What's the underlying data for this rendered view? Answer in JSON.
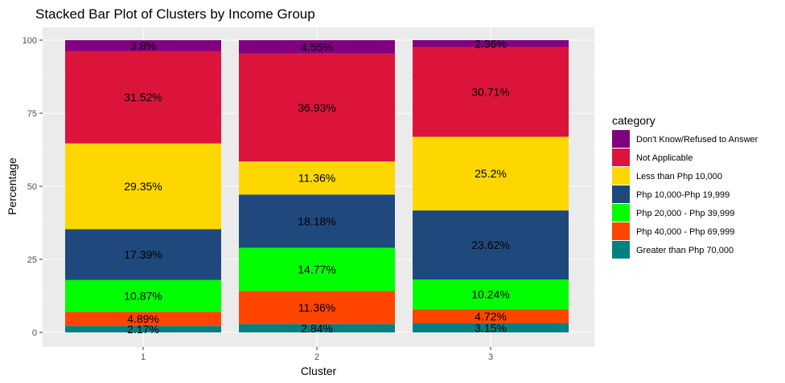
{
  "chart_data": {
    "type": "bar",
    "stacked": true,
    "title": "Stacked Bar Plot of Clusters by Income Group",
    "xlabel": "Cluster",
    "ylabel": "Percentage",
    "ylim": [
      0,
      100
    ],
    "yticks": [
      0,
      25,
      50,
      75,
      100
    ],
    "categories": [
      "1",
      "2",
      "3"
    ],
    "grid": true,
    "legend_title": "category",
    "legend_position": "right",
    "series": [
      {
        "name": "Greater than Php 70,000",
        "color": "#008080",
        "values": [
          2.17,
          2.84,
          3.15
        ],
        "labels": [
          "2.17%",
          "2.84%",
          "3.15%"
        ]
      },
      {
        "name": "Php 40,000 - Php 69,999",
        "color": "#FF4500",
        "values": [
          4.89,
          11.36,
          4.72
        ],
        "labels": [
          "4.89%",
          "11.36%",
          "4.72%"
        ]
      },
      {
        "name": "Php 20,000 - Php 39,999",
        "color": "#00FF00",
        "values": [
          10.87,
          14.77,
          10.24
        ],
        "labels": [
          "10.87%",
          "14.77%",
          "10.24%"
        ]
      },
      {
        "name": "Php 10,000-Php 19,999",
        "color": "#1F497D",
        "values": [
          17.39,
          18.18,
          23.62
        ],
        "labels": [
          "17.39%",
          "18.18%",
          "23.62%"
        ]
      },
      {
        "name": "Less than Php 10,000",
        "color": "#FFD700",
        "values": [
          29.35,
          11.36,
          25.2
        ],
        "labels": [
          "29.35%",
          "11.36%",
          "25.2%"
        ]
      },
      {
        "name": "Not Applicable",
        "color": "#DC143C",
        "values": [
          31.52,
          36.93,
          30.71
        ],
        "labels": [
          "31.52%",
          "36.93%",
          "30.71%"
        ]
      },
      {
        "name": "Don't Know/Refused to Answer",
        "color": "#800080",
        "values": [
          3.8,
          4.55,
          2.36
        ],
        "labels": [
          "3.8%",
          "4.55%",
          "2.36%"
        ]
      }
    ],
    "legend_order": [
      "Don't Know/Refused to Answer",
      "Not Applicable",
      "Less than Php 10,000",
      "Php 10,000-Php 19,999",
      "Php 20,000 - Php 39,999",
      "Php 40,000 - Php 69,999",
      "Greater than Php 70,000"
    ]
  }
}
